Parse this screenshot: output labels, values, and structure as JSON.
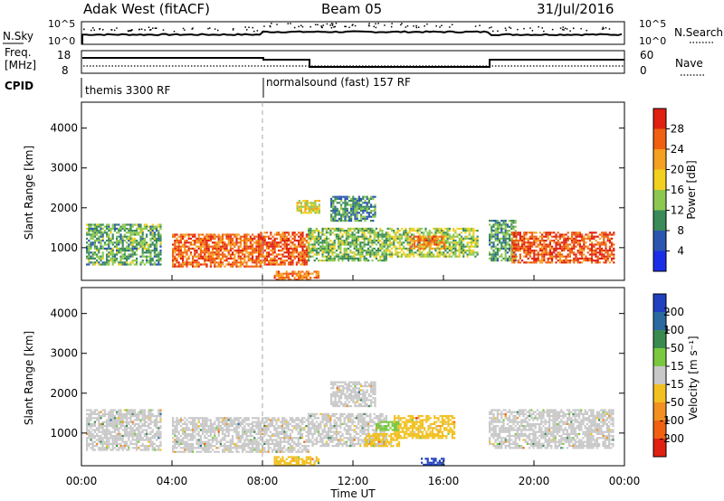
{
  "header": {
    "radar": "Adak West (fitACF)",
    "beam": "Beam 05",
    "date": "31/Jul/2016"
  },
  "top_panels": {
    "nsky_label": "N.Sky",
    "nsky_ticks": [
      "10^5",
      "10^0"
    ],
    "nsearch_label": "N.Search",
    "nsearch_ticks": [
      "10^5",
      "10^0"
    ],
    "freq_label": "Freq.",
    "freq_unit": "[MHz]",
    "freq_ticks": [
      "18",
      "8"
    ],
    "nave_label": "Nave",
    "nave_ticks": [
      "60",
      "0"
    ],
    "cpid_label": "CPID",
    "cpid_segments": [
      {
        "label": "themis 3300 RF",
        "start_hour": 0
      },
      {
        "label": "normalsound (fast) 157 RF",
        "start_hour": 8
      }
    ]
  },
  "time_axis": {
    "ticks": [
      "00:00",
      "04:00",
      "08:00",
      "12:00",
      "16:00",
      "20:00",
      "00:00"
    ],
    "title": "Time UT"
  },
  "chart_data": [
    {
      "type": "heatmap",
      "ylabel": "Slant Range [km]",
      "yticks": [
        "1000",
        "2000",
        "3000",
        "4000"
      ],
      "ylim": [
        180,
        4650
      ],
      "xlim_hours": [
        0,
        24
      ],
      "colorbar_label": "Power [dB]",
      "colorbar_ticks": [
        "4",
        "8",
        "12",
        "16",
        "20",
        "24",
        "28"
      ],
      "colorbar_colors": [
        "#1a2ee8",
        "#2a56b0",
        "#3a8a5a",
        "#8cc850",
        "#f2d020",
        "#f5a020",
        "#f06010",
        "#e02010"
      ],
      "value_range": [
        0,
        32
      ],
      "echo_regions": [
        {
          "t0": 0.2,
          "t1": 3.5,
          "r0": 600,
          "r1": 1600,
          "level": 12
        },
        {
          "t0": 4.0,
          "t1": 8.0,
          "r0": 550,
          "r1": 1350,
          "level": 26
        },
        {
          "t0": 7.8,
          "t1": 10.0,
          "r0": 600,
          "r1": 1400,
          "level": 27
        },
        {
          "t0": 10.0,
          "t1": 13.5,
          "r0": 700,
          "r1": 1500,
          "level": 13
        },
        {
          "t0": 13.5,
          "t1": 17.5,
          "r0": 800,
          "r1": 1500,
          "level": 15
        },
        {
          "t0": 14.5,
          "t1": 16.0,
          "r0": 1000,
          "r1": 1300,
          "level": 24
        },
        {
          "t0": 18.0,
          "t1": 19.2,
          "r0": 700,
          "r1": 1700,
          "level": 11
        },
        {
          "t0": 19.0,
          "t1": 23.5,
          "r0": 650,
          "r1": 1400,
          "level": 27
        },
        {
          "t0": 8.5,
          "t1": 10.5,
          "r0": 220,
          "r1": 420,
          "level": 25
        },
        {
          "t0": 11.0,
          "t1": 13.0,
          "r0": 1700,
          "r1": 2300,
          "level": 10
        },
        {
          "t0": 9.5,
          "t1": 10.5,
          "r0": 1900,
          "r1": 2200,
          "level": 18
        }
      ]
    },
    {
      "type": "heatmap",
      "ylabel": "Slant Range [km]",
      "yticks": [
        "1000",
        "2000",
        "3000",
        "4000"
      ],
      "ylim": [
        180,
        4650
      ],
      "xlim_hours": [
        0,
        24
      ],
      "colorbar_label": "Velocity [m s⁻¹]",
      "colorbar_ticks": [
        "200",
        "100",
        "50",
        "15",
        "-15",
        "-50",
        "-100",
        "-200"
      ],
      "colorbar_colors": [
        "#2040c0",
        "#2a6aa0",
        "#3a8a50",
        "#7ac840",
        "#c8c8c8",
        "#f2c020",
        "#f29020",
        "#f06010",
        "#e02010"
      ],
      "value_range": [
        -250,
        250
      ],
      "echo_regions": [
        {
          "t0": 0.2,
          "t1": 3.5,
          "r0": 600,
          "r1": 1600,
          "level": 0
        },
        {
          "t0": 4.0,
          "t1": 10.0,
          "r0": 550,
          "r1": 1400,
          "level": 0
        },
        {
          "t0": 10.0,
          "t1": 13.5,
          "r0": 700,
          "r1": 1500,
          "level": 0
        },
        {
          "t0": 13.8,
          "t1": 16.5,
          "r0": 900,
          "r1": 1450,
          "level": -60
        },
        {
          "t0": 12.5,
          "t1": 14.0,
          "r0": 700,
          "r1": 1000,
          "level": -40
        },
        {
          "t0": 13.0,
          "t1": 14.0,
          "r0": 1100,
          "r1": 1300,
          "level": 40
        },
        {
          "t0": 18.0,
          "t1": 23.5,
          "r0": 650,
          "r1": 1600,
          "level": 0
        },
        {
          "t0": 8.5,
          "t1": 10.5,
          "r0": 220,
          "r1": 420,
          "level": -50
        },
        {
          "t0": 15.0,
          "t1": 16.0,
          "r0": 230,
          "r1": 380,
          "level": 220
        },
        {
          "t0": 11.0,
          "t1": 13.0,
          "r0": 1700,
          "r1": 2300,
          "level": 0
        }
      ]
    }
  ]
}
